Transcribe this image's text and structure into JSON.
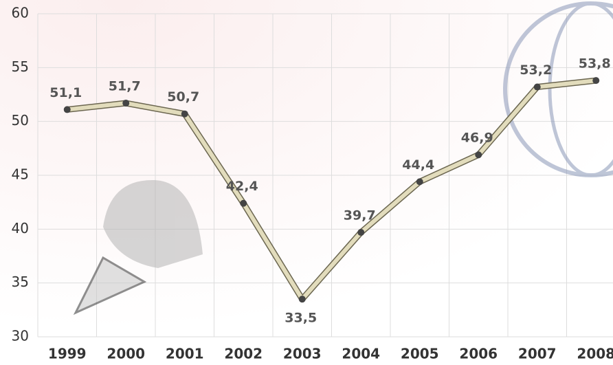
{
  "chart_data": {
    "type": "line",
    "categories": [
      "1999",
      "2000",
      "2001",
      "2002",
      "2003",
      "2004",
      "2005",
      "2006",
      "2007",
      "2008"
    ],
    "values": [
      51.1,
      51.7,
      50.7,
      42.4,
      33.5,
      39.7,
      44.4,
      46.9,
      53.2,
      53.8
    ],
    "value_labels": [
      "51,1",
      "51,7",
      "50,7",
      "42,4",
      "33,5",
      "39,7",
      "44,4",
      "46,9",
      "53,2",
      "53,8"
    ],
    "color": "#e2dcbc",
    "ylim": [
      30,
      60
    ],
    "yticks": [
      30,
      35,
      40,
      45,
      50,
      55,
      60
    ],
    "grid": true
  }
}
